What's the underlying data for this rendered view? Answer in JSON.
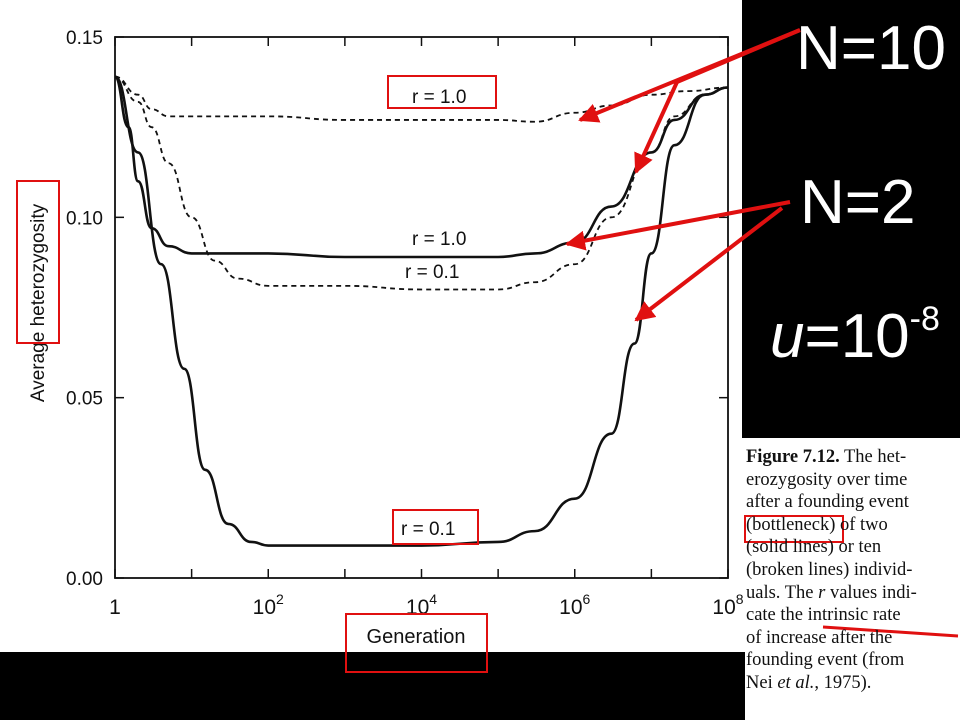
{
  "chart_data": {
    "type": "line",
    "x_scale": "log",
    "xlabel": "Generation",
    "ylabel": "Average heterozygosity",
    "xlim": [
      1,
      100000000
    ],
    "ylim": [
      0,
      0.15
    ],
    "x_ticks": [
      {
        "value": 1,
        "base": "1",
        "exp": ""
      },
      {
        "value": 100,
        "base": "10",
        "exp": "2"
      },
      {
        "value": 10000,
        "base": "10",
        "exp": "4"
      },
      {
        "value": 1000000,
        "base": "10",
        "exp": "6"
      },
      {
        "value": 100000000,
        "base": "10",
        "exp": "8"
      }
    ],
    "y_ticks": [
      "0.00",
      "0.05",
      "0.10",
      "0.15"
    ],
    "series": [
      {
        "style": "dashed",
        "label": "r = 1.0",
        "points": [
          [
            1,
            0.139
          ],
          [
            2,
            0.134
          ],
          [
            3,
            0.13
          ],
          [
            5,
            0.128
          ],
          [
            10,
            0.128
          ],
          [
            100,
            0.128
          ],
          [
            1000,
            0.127
          ],
          [
            10000,
            0.127
          ],
          [
            100000,
            0.127
          ],
          [
            300000,
            0.1265
          ],
          [
            1000000,
            0.129
          ],
          [
            3000000,
            0.131
          ],
          [
            10000000,
            0.134
          ],
          [
            30000000,
            0.135
          ],
          [
            100000000,
            0.136
          ]
        ]
      },
      {
        "style": "dashed",
        "label": "r = 0.1",
        "points": [
          [
            1,
            0.139
          ],
          [
            2,
            0.132
          ],
          [
            3,
            0.125
          ],
          [
            5,
            0.115
          ],
          [
            10,
            0.1
          ],
          [
            20,
            0.088
          ],
          [
            40,
            0.083
          ],
          [
            100,
            0.081
          ],
          [
            1000,
            0.081
          ],
          [
            10000,
            0.08
          ],
          [
            100000,
            0.08
          ],
          [
            300000,
            0.082
          ],
          [
            1000000,
            0.087
          ],
          [
            3000000,
            0.1
          ],
          [
            10000000,
            0.118
          ],
          [
            20000000,
            0.128
          ],
          [
            50000000,
            0.134
          ],
          [
            100000000,
            0.136
          ]
        ]
      },
      {
        "style": "solid",
        "label": "r = 1.0",
        "points": [
          [
            1,
            0.139
          ],
          [
            1.5,
            0.125
          ],
          [
            2,
            0.11
          ],
          [
            3,
            0.097
          ],
          [
            5,
            0.092
          ],
          [
            10,
            0.09
          ],
          [
            100,
            0.09
          ],
          [
            1000,
            0.089
          ],
          [
            10000,
            0.089
          ],
          [
            100000,
            0.089
          ],
          [
            300000,
            0.09
          ],
          [
            1000000,
            0.093
          ],
          [
            3000000,
            0.103
          ],
          [
            10000000,
            0.118
          ],
          [
            20000000,
            0.127
          ],
          [
            50000000,
            0.134
          ],
          [
            100000000,
            0.136
          ]
        ]
      },
      {
        "style": "solid",
        "label": "r = 0.1",
        "points": [
          [
            1,
            0.139
          ],
          [
            2,
            0.118
          ],
          [
            4,
            0.087
          ],
          [
            8,
            0.058
          ],
          [
            15,
            0.03
          ],
          [
            30,
            0.015
          ],
          [
            60,
            0.01
          ],
          [
            100,
            0.009
          ],
          [
            1000,
            0.009
          ],
          [
            10000,
            0.009
          ],
          [
            100000,
            0.01
          ],
          [
            300000,
            0.013
          ],
          [
            1000000,
            0.022
          ],
          [
            3000000,
            0.04
          ],
          [
            6000000,
            0.065
          ],
          [
            10000000,
            0.09
          ],
          [
            20000000,
            0.12
          ],
          [
            50000000,
            0.134
          ],
          [
            100000000,
            0.136
          ]
        ]
      }
    ]
  },
  "annotations": {
    "n10": "N=10",
    "n2": "N=2",
    "u_base": "u",
    "u_eq": "=10",
    "u_exp": "-8",
    "label_r10_dashed": "r = 1.0",
    "label_r10_solid": "r = 1.0",
    "label_r01_dashed": "r = 0.1",
    "label_r01_solid": "r = 0.1",
    "arrow_color": "#e01010"
  },
  "caption": {
    "fig": "Figure 7.12.",
    "l1": " The het-",
    "l2": "erozygosity over time",
    "l3": "after a founding event",
    "l4a": "(bottleneck)",
    "l4b": " of two",
    "l5": "(solid lines) or ten",
    "l6": "(broken lines) individ-",
    "l7": "uals. The ",
    "l7r": "r",
    "l7b": " values indi-",
    "l8a": "cate the ",
    "l8b": "intrinsic rate",
    "l9": "of increase after the",
    "l10": "founding event (from",
    "l11a": "Nei ",
    "l11b": "et al.",
    "l11c": ", 1975)."
  }
}
